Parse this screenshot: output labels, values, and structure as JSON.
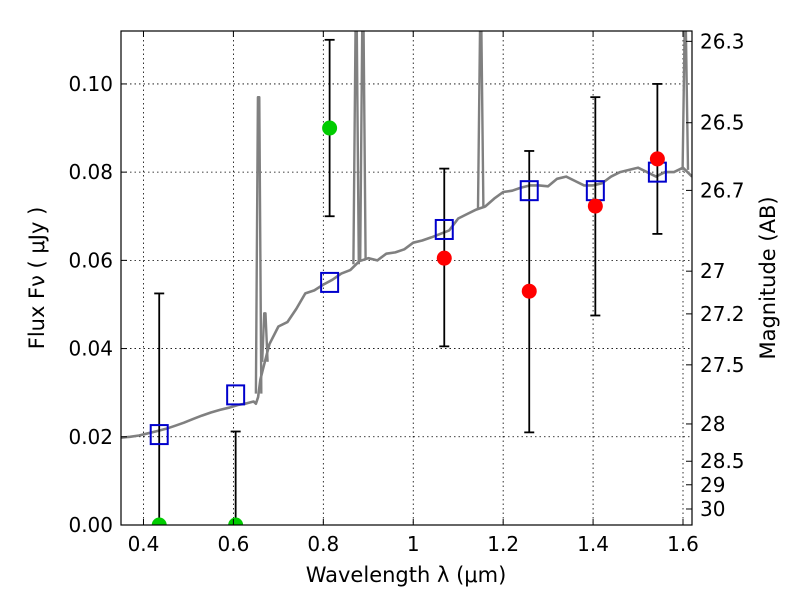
{
  "chart_data": {
    "type": "scatter",
    "xlabel": "Wavelength  λ (μm)",
    "ylabel": "Flux  Fν  ( μJy )",
    "ylabel_right": "Magnitude (AB)",
    "xlim": [
      0.35,
      1.62
    ],
    "ylim": [
      0.0,
      0.112
    ],
    "grid": true,
    "x_ticks": [
      {
        "value": 0.4,
        "label": "0.4"
      },
      {
        "value": 0.6,
        "label": "0.6"
      },
      {
        "value": 0.8,
        "label": "0.8"
      },
      {
        "value": 1.0,
        "label": "1"
      },
      {
        "value": 1.2,
        "label": "1.2"
      },
      {
        "value": 1.4,
        "label": "1.4"
      },
      {
        "value": 1.6,
        "label": "1.6"
      }
    ],
    "y_ticks": [
      {
        "value": 0.0,
        "label": "0.00"
      },
      {
        "value": 0.02,
        "label": "0.02"
      },
      {
        "value": 0.04,
        "label": "0.04"
      },
      {
        "value": 0.06,
        "label": "0.06"
      },
      {
        "value": 0.08,
        "label": "0.08"
      },
      {
        "value": 0.1,
        "label": "0.10"
      }
    ],
    "right_ticks": [
      {
        "value": 26.3,
        "label": "26.3"
      },
      {
        "value": 26.5,
        "label": "26.5"
      },
      {
        "value": 26.7,
        "label": "26.7"
      },
      {
        "value": 27.0,
        "label": "27"
      },
      {
        "value": 27.2,
        "label": "27.2"
      },
      {
        "value": 27.5,
        "label": "27.5"
      },
      {
        "value": 28.0,
        "label": "28"
      },
      {
        "value": 28.5,
        "label": "28.5"
      },
      {
        "value": 29.0,
        "label": "29"
      },
      {
        "value": 30.0,
        "label": "30"
      }
    ],
    "model_spectrum": {
      "color": "#808080",
      "x": [
        0.35,
        0.37,
        0.39,
        0.41,
        0.43,
        0.45,
        0.47,
        0.49,
        0.51,
        0.53,
        0.55,
        0.57,
        0.59,
        0.61,
        0.63,
        0.645,
        0.65,
        0.655,
        0.66,
        0.665,
        0.68,
        0.7,
        0.72,
        0.74,
        0.76,
        0.78,
        0.8,
        0.82,
        0.84,
        0.86,
        0.88,
        0.9,
        0.92,
        0.94,
        0.96,
        0.98,
        1.0,
        1.02,
        1.04,
        1.06,
        1.08,
        1.1,
        1.12,
        1.14,
        1.16,
        1.18,
        1.2,
        1.22,
        1.24,
        1.26,
        1.28,
        1.3,
        1.32,
        1.34,
        1.36,
        1.38,
        1.4,
        1.42,
        1.44,
        1.46,
        1.48,
        1.5,
        1.52,
        1.54,
        1.56,
        1.58,
        1.6,
        1.62
      ],
      "y": [
        0.0198,
        0.02,
        0.0203,
        0.0208,
        0.0213,
        0.0218,
        0.0225,
        0.0232,
        0.024,
        0.0248,
        0.0255,
        0.0261,
        0.0266,
        0.0272,
        0.0276,
        0.028,
        0.0275,
        0.029,
        0.033,
        0.035,
        0.041,
        0.045,
        0.046,
        0.049,
        0.0525,
        0.0532,
        0.0545,
        0.0556,
        0.057,
        0.0578,
        0.0598,
        0.0605,
        0.06,
        0.0615,
        0.0618,
        0.0625,
        0.064,
        0.0645,
        0.0652,
        0.066,
        0.0668,
        0.0695,
        0.0705,
        0.0715,
        0.0722,
        0.074,
        0.0755,
        0.0758,
        0.0765,
        0.077,
        0.077,
        0.0768,
        0.0785,
        0.079,
        0.078,
        0.077,
        0.077,
        0.0775,
        0.079,
        0.08,
        0.0805,
        0.081,
        0.08,
        0.079,
        0.08,
        0.08,
        0.081,
        0.079
      ]
    },
    "emission_lines": [
      {
        "x": 0.656,
        "peak": 0.097
      },
      {
        "x": 0.67,
        "peak": 0.048
      },
      {
        "x": 0.873,
        "peak": 0.112
      },
      {
        "x": 0.888,
        "peak": 0.112
      },
      {
        "x": 1.15,
        "peak": 0.112
      },
      {
        "x": 1.605,
        "peak": 0.112
      }
    ],
    "model_photometry": {
      "marker": "open-square",
      "color": "#0000cc",
      "points": [
        {
          "x": 0.435,
          "y": 0.0205
        },
        {
          "x": 0.605,
          "y": 0.0295
        },
        {
          "x": 0.814,
          "y": 0.055
        },
        {
          "x": 1.069,
          "y": 0.067
        },
        {
          "x": 1.258,
          "y": 0.0758
        },
        {
          "x": 1.405,
          "y": 0.0758
        },
        {
          "x": 1.543,
          "y": 0.08
        }
      ]
    },
    "observed": {
      "marker": "filled-circle",
      "points": [
        {
          "x": 0.435,
          "y": 0.0,
          "yerr_low": 0.0,
          "yerr_high": 0.0525,
          "color": "#00cc00"
        },
        {
          "x": 0.605,
          "y": 0.0,
          "yerr_low": 0.0,
          "yerr_high": 0.0212,
          "color": "#00cc00"
        },
        {
          "x": 0.814,
          "y": 0.09,
          "yerr_low": 0.07,
          "yerr_high": 0.11,
          "color": "#00cc00"
        },
        {
          "x": 1.069,
          "y": 0.0605,
          "yerr_low": 0.0405,
          "yerr_high": 0.0808,
          "color": "#ff0000"
        },
        {
          "x": 1.258,
          "y": 0.053,
          "yerr_low": 0.021,
          "yerr_high": 0.0848,
          "color": "#ff0000"
        },
        {
          "x": 1.405,
          "y": 0.0723,
          "yerr_low": 0.0475,
          "yerr_high": 0.097,
          "color": "#ff0000"
        },
        {
          "x": 1.543,
          "y": 0.083,
          "yerr_low": 0.066,
          "yerr_high": 0.1,
          "color": "#ff0000"
        }
      ]
    }
  }
}
